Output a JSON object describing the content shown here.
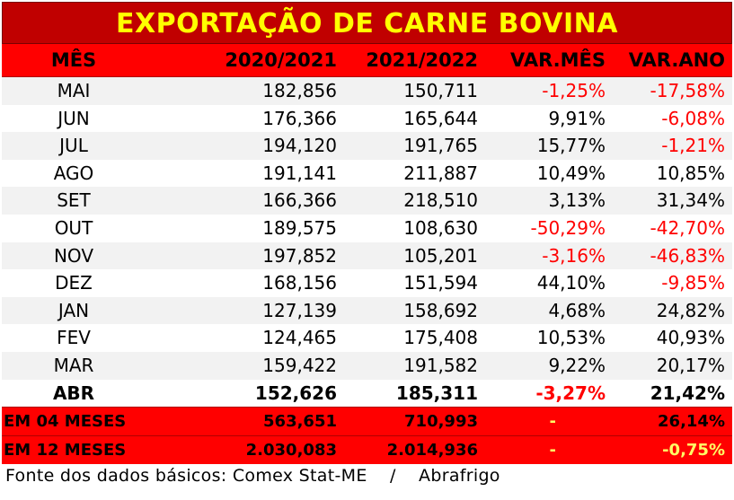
{
  "title": "EXPORTAÇÃO DE CARNE BOVINA",
  "headers": [
    "MÊS",
    "2020/2021",
    "2021/2022",
    "VAR.MÊS",
    "VAR.ANO"
  ],
  "rows": [
    {
      "mes": "MAI",
      "a": "182,856",
      "b": "150,711",
      "vm": "-1,25%",
      "va": "-17,58%"
    },
    {
      "mes": "JUN",
      "a": "176,366",
      "b": "165,644",
      "vm": "9,91%",
      "va": "-6,08%"
    },
    {
      "mes": "JUL",
      "a": "194,120",
      "b": "191,765",
      "vm": "15,77%",
      "va": "-1,21%"
    },
    {
      "mes": "AGO",
      "a": "191,141",
      "b": "211,887",
      "vm": "10,49%",
      "va": "10,85%"
    },
    {
      "mes": "SET",
      "a": "166,366",
      "b": "218,510",
      "vm": "3,13%",
      "va": "31,34%"
    },
    {
      "mes": "OUT",
      "a": "189,575",
      "b": "108,630",
      "vm": "-50,29%",
      "va": "-42,70%"
    },
    {
      "mes": "NOV",
      "a": "197,852",
      "b": "105,201",
      "vm": "-3,16%",
      "va": "-46,83%"
    },
    {
      "mes": "DEZ",
      "a": "168,156",
      "b": "151,594",
      "vm": "44,10%",
      "va": "-9,85%"
    },
    {
      "mes": "JAN",
      "a": "127,139",
      "b": "158,692",
      "vm": "4,68%",
      "va": "24,82%"
    },
    {
      "mes": "FEV",
      "a": "124,465",
      "b": "175,408",
      "vm": "10,53%",
      "va": "40,93%"
    },
    {
      "mes": "MAR",
      "a": "159,422",
      "b": "191,582",
      "vm": "9,22%",
      "va": "20,17%"
    },
    {
      "mes": "ABR",
      "a": "152,626",
      "b": "185,311",
      "vm": "-3,27%",
      "va": "21,42%"
    }
  ],
  "totals": [
    {
      "label": "EM 04 MESES",
      "a": "563,651",
      "b": "710,993",
      "vm": "-",
      "va": "26,14%"
    },
    {
      "label": "EM 12 MESES",
      "a": "2.030,083",
      "b": "2.014,936",
      "vm": "-",
      "va": "-0,75%"
    }
  ],
  "footer": "Fonte dos dados básicos: Comex Stat-ME    /    Abrafrigo",
  "colors": {
    "title_bg": "#c00000",
    "title_text": "#ffff00",
    "header_bg": "#ff0000",
    "negative": "#ff0000"
  }
}
